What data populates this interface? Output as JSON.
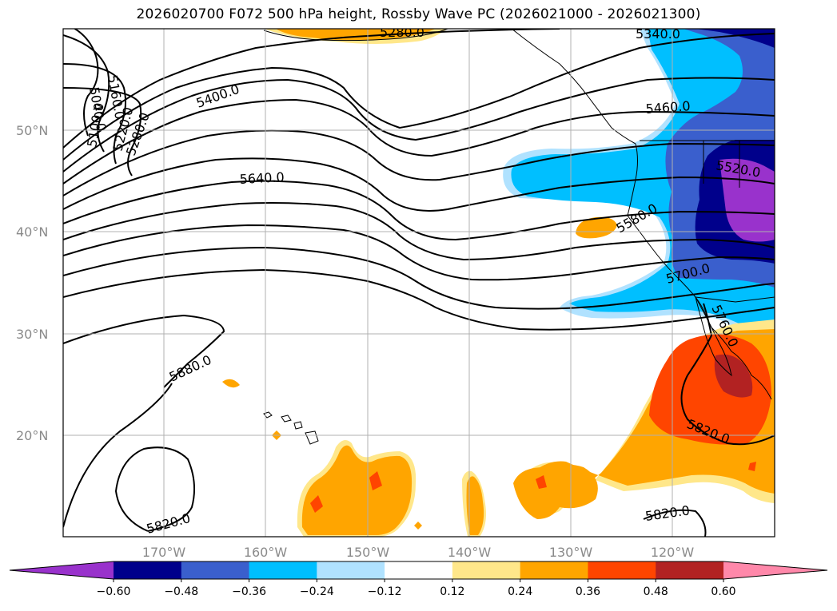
{
  "title": "2026020700 F072 500 hPa height, Rossby Wave PC (2026021000 - 2026021300)",
  "lat_labels": [
    "50°N",
    "40°N",
    "30°N",
    "20°N"
  ],
  "lon_labels": [
    "170°W",
    "160°W",
    "150°W",
    "140°W",
    "130°W",
    "120°W"
  ],
  "contour_labels": [
    "5280.0",
    "5340.0",
    "5400.0",
    "5460.0",
    "5160.0",
    "5040.0",
    "5100.0",
    "5220.0",
    "5280.0",
    "5640.0",
    "5520.0",
    "5580.0",
    "5700.0",
    "5760.0",
    "5880.0",
    "5820.0",
    "5820.0",
    "5820.0"
  ],
  "colorbar": {
    "ticks": [
      "−0.60",
      "−0.48",
      "−0.36",
      "−0.24",
      "−0.12",
      "0.12",
      "0.24",
      "0.36",
      "0.48",
      "0.60"
    ],
    "colors": [
      "#9932cc",
      "#00008b",
      "#3a5fcd",
      "#00bfff",
      "#b0e2ff",
      "#ffffff",
      "#ffe78a",
      "#ffa500",
      "#ff4500",
      "#b22222",
      "#ff88aa"
    ]
  },
  "colors": {
    "grid": "#b0b0b0",
    "contour": "#000000"
  }
}
